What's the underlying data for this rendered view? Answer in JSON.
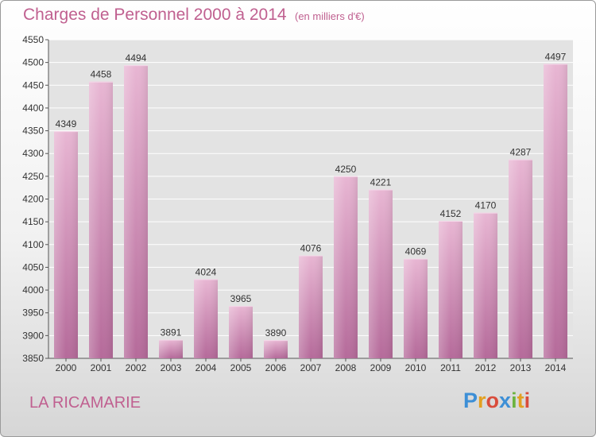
{
  "header": {
    "title": "Charges de Personnel 2000 à 2014",
    "subtitle": "(en milliers d'€)"
  },
  "footer": {
    "place": "LA RICAMARIE",
    "logo_text": "Proxiti",
    "logo_letters": [
      "P",
      "r",
      "o",
      "x",
      "i",
      "t",
      "i"
    ]
  },
  "colors": {
    "bar": "#d58cb6",
    "bar_light": "#e6b2d1",
    "bar_dark": "#b5679a",
    "text_accent": "#c06090",
    "grid": "#ffffff",
    "plot_bg": "#e4e4e4"
  },
  "chart_data": {
    "type": "bar",
    "title": "Charges de Personnel 2000 à 2014",
    "subtitle": "(en milliers d'€)",
    "categories": [
      "2000",
      "2001",
      "2002",
      "2003",
      "2004",
      "2005",
      "2006",
      "2007",
      "2008",
      "2009",
      "2010",
      "2011",
      "2012",
      "2013",
      "2014"
    ],
    "values": [
      4349,
      4458,
      4494,
      3891,
      4024,
      3965,
      3890,
      4076,
      4250,
      4221,
      4069,
      4152,
      4170,
      4287,
      4497
    ],
    "ylim": [
      3850,
      4550
    ],
    "ytick_step": 50,
    "yticks": [
      "3850",
      "3900",
      "3950",
      "4000",
      "4050",
      "4100",
      "4150",
      "4200",
      "4250",
      "4300",
      "4350",
      "4400",
      "4450",
      "4500",
      "4550"
    ],
    "grid": true,
    "data_labels": true
  }
}
